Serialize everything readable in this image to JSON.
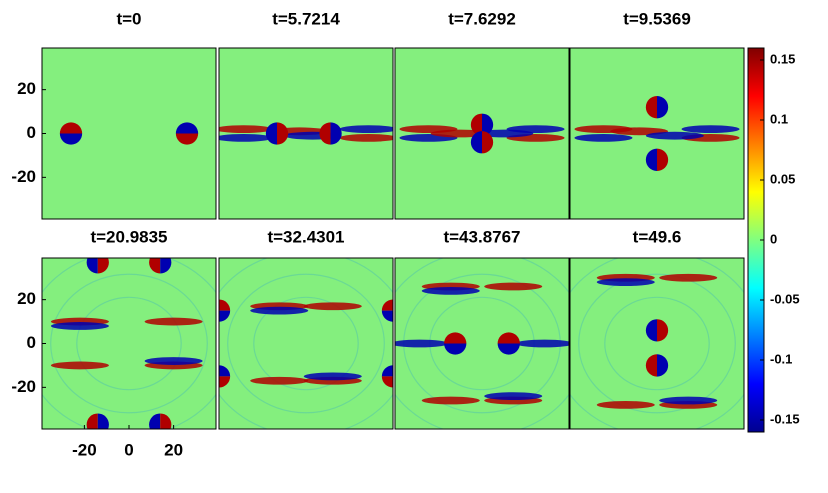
{
  "chart_data": {
    "type": "heatmap",
    "panels": [
      {
        "title": "t=0"
      },
      {
        "title": "t=5.7214"
      },
      {
        "title": "t=7.6292"
      },
      {
        "title": "t=9.5369"
      },
      {
        "title": "t=20.9835"
      },
      {
        "title": "t=32.4301"
      },
      {
        "title": "t=43.8767"
      },
      {
        "title": "t=49.6"
      }
    ],
    "xlim": [
      -39,
      39
    ],
    "ylim": [
      -39,
      39
    ],
    "xticks": [
      -20,
      0,
      20
    ],
    "yticks": [
      -20,
      0,
      20
    ],
    "colorbar": {
      "clim": [
        -0.16,
        0.16
      ],
      "ticks": [
        -0.15,
        -0.1,
        -0.05,
        0,
        0.05,
        0.1,
        0.15
      ],
      "colormap": "jet"
    }
  }
}
